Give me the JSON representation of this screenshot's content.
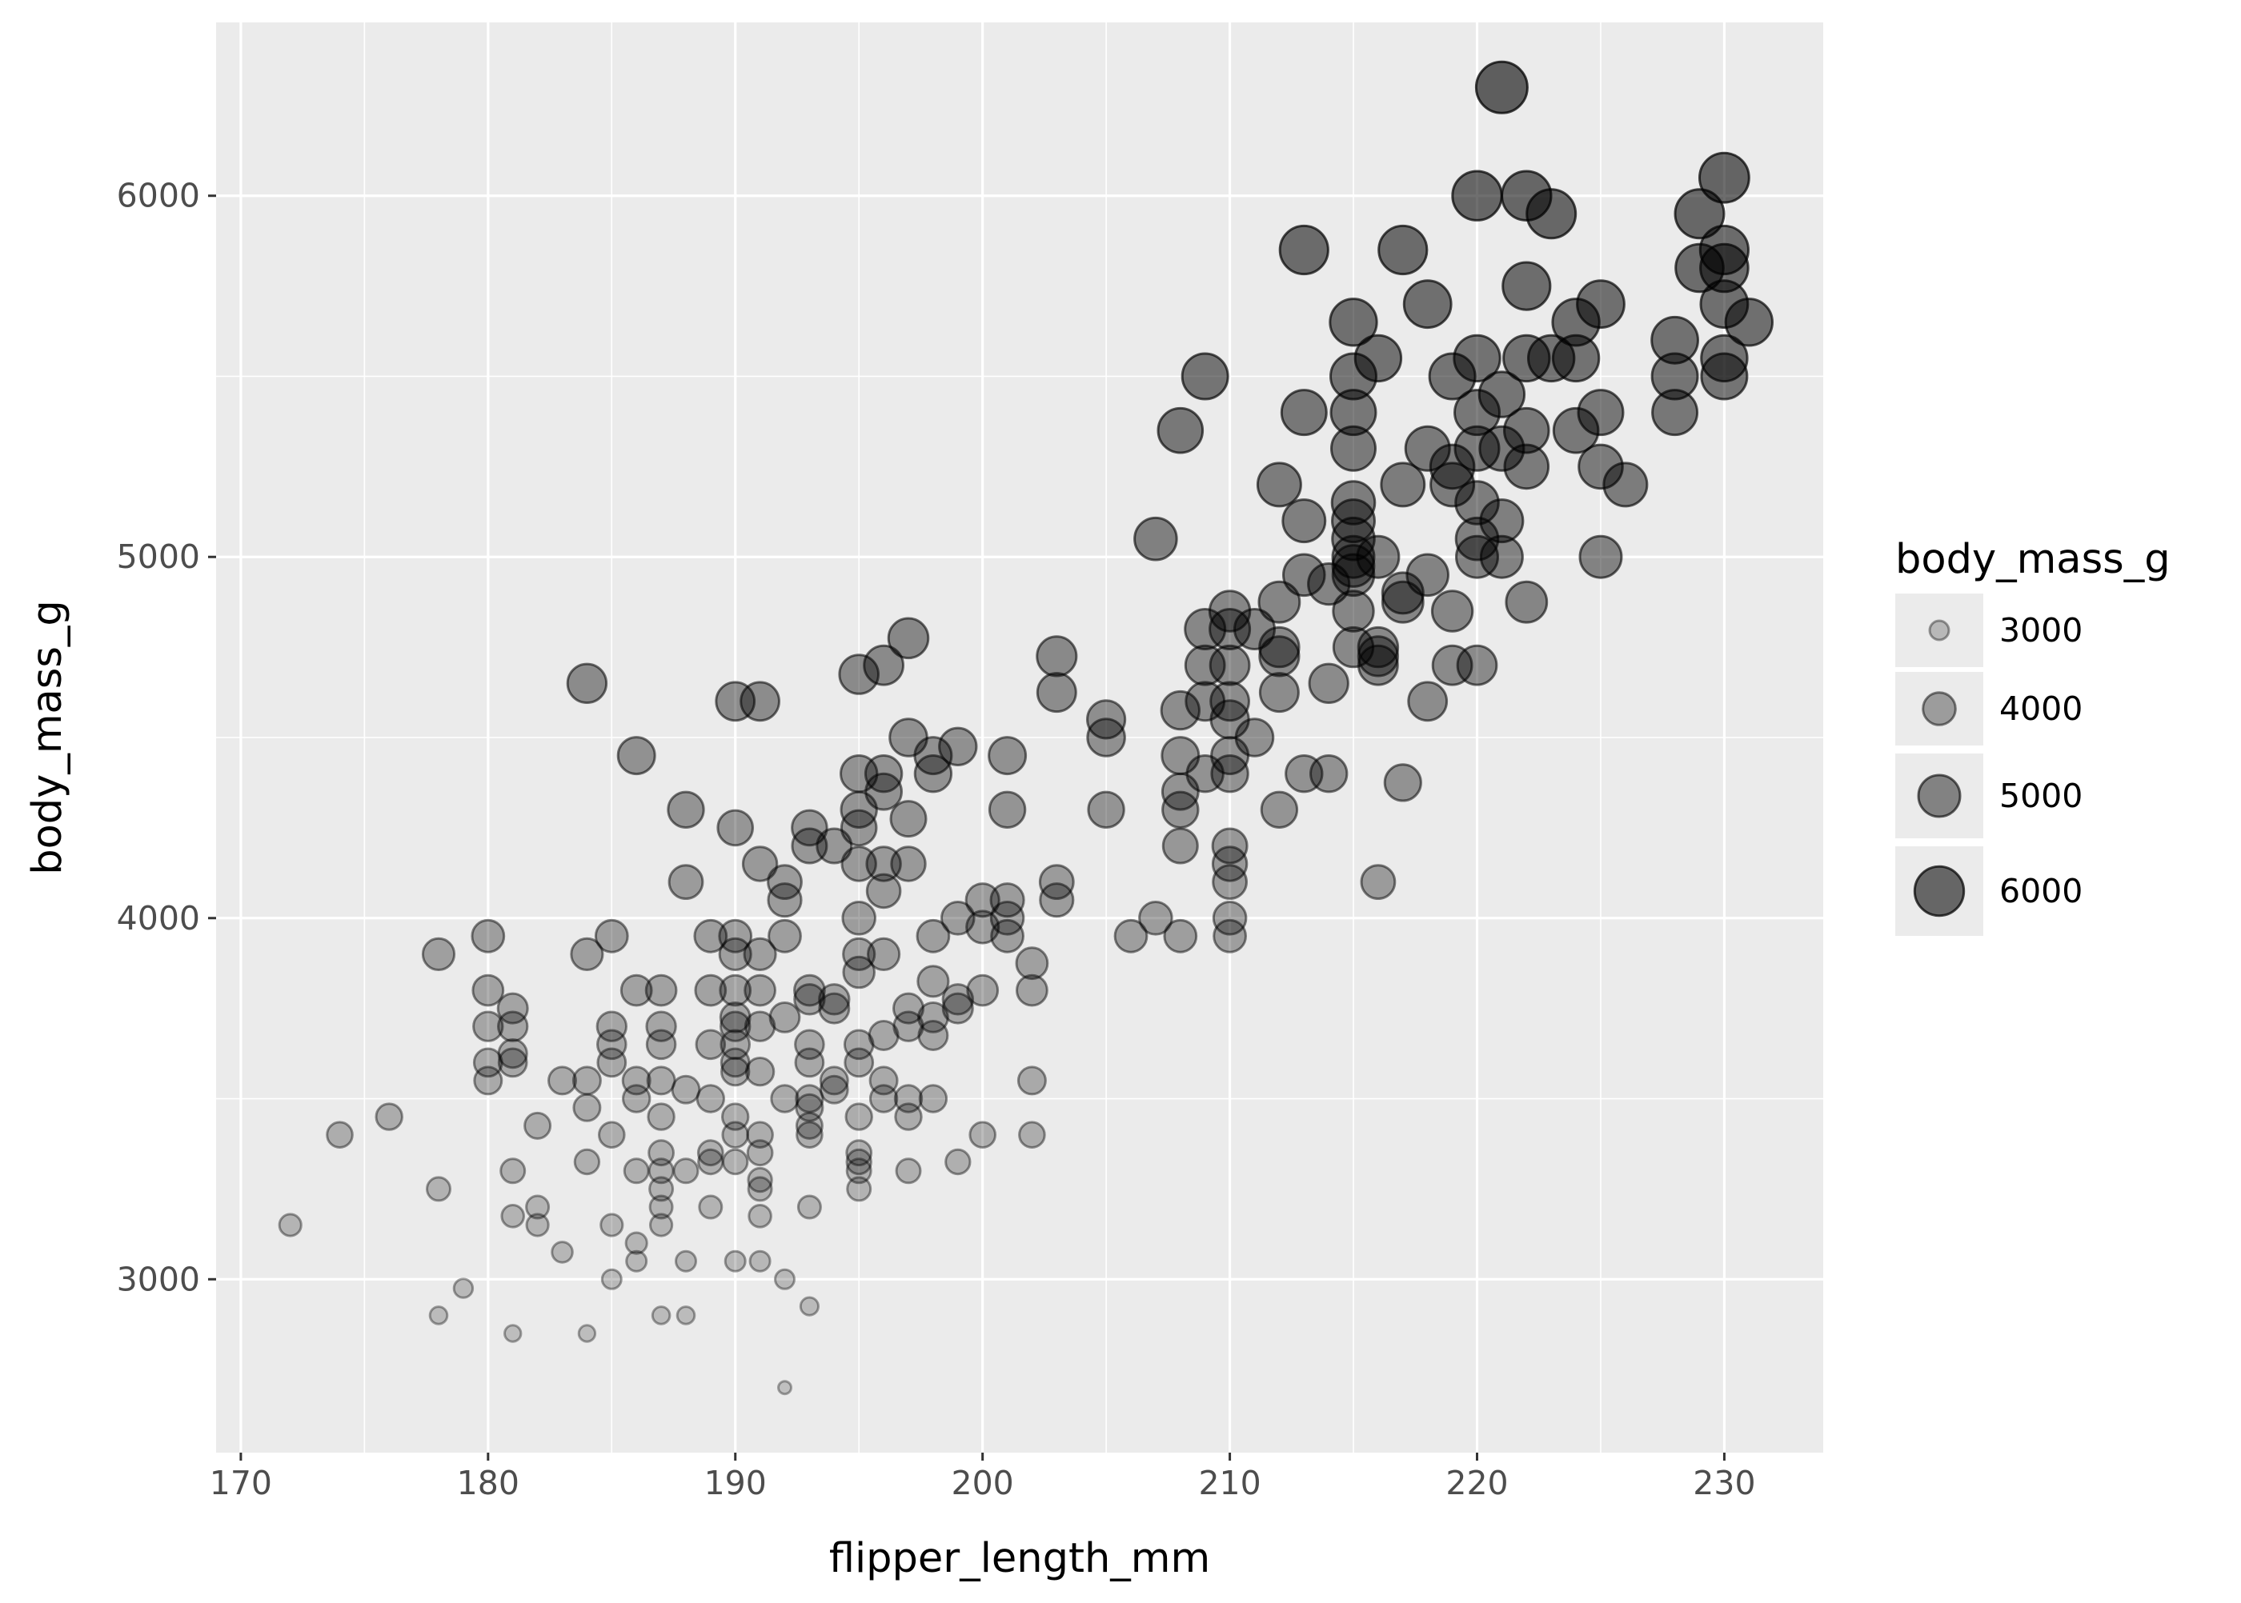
{
  "chart_data": {
    "type": "scatter",
    "title": "",
    "xlabel": "flipper_length_mm",
    "ylabel": "body_mass_g",
    "xlim": [
      169,
      234
    ],
    "ylim": [
      2520,
      6480
    ],
    "x_ticks": [
      170,
      180,
      190,
      200,
      210,
      220,
      230
    ],
    "y_ticks": [
      3000,
      4000,
      5000,
      6000
    ],
    "grid": true,
    "legend": {
      "title": "body_mass_g",
      "placement": "right",
      "values": [
        3000,
        4000,
        5000,
        6000
      ]
    },
    "size_encoding": "body_mass_g",
    "alpha_encoding": "body_mass_g",
    "points": [
      [
        172,
        3150
      ],
      [
        174,
        3400
      ],
      [
        176,
        3450
      ],
      [
        178,
        3900
      ],
      [
        178,
        3250
      ],
      [
        178,
        2900
      ],
      [
        179,
        2975
      ],
      [
        180,
        3950
      ],
      [
        180,
        3800
      ],
      [
        180,
        3700
      ],
      [
        180,
        3600
      ],
      [
        180,
        3550
      ],
      [
        181,
        3750
      ],
      [
        181,
        3700
      ],
      [
        181,
        3625
      ],
      [
        181,
        3600
      ],
      [
        181,
        3300
      ],
      [
        181,
        3175
      ],
      [
        181,
        2850
      ],
      [
        182,
        3425
      ],
      [
        182,
        3200
      ],
      [
        182,
        3150
      ],
      [
        183,
        3550
      ],
      [
        183,
        3075
      ],
      [
        184,
        4650
      ],
      [
        184,
        3900
      ],
      [
        184,
        3550
      ],
      [
        184,
        3475
      ],
      [
        184,
        3325
      ],
      [
        184,
        2850
      ],
      [
        185,
        3950
      ],
      [
        185,
        3700
      ],
      [
        185,
        3650
      ],
      [
        185,
        3600
      ],
      [
        185,
        3400
      ],
      [
        185,
        3150
      ],
      [
        185,
        3000
      ],
      [
        186,
        4450
      ],
      [
        186,
        3800
      ],
      [
        186,
        3550
      ],
      [
        186,
        3500
      ],
      [
        186,
        3300
      ],
      [
        186,
        3100
      ],
      [
        186,
        3050
      ],
      [
        187,
        3800
      ],
      [
        187,
        3700
      ],
      [
        187,
        3650
      ],
      [
        187,
        3550
      ],
      [
        187,
        3450
      ],
      [
        187,
        3350
      ],
      [
        187,
        3300
      ],
      [
        187,
        3250
      ],
      [
        187,
        3200
      ],
      [
        187,
        3150
      ],
      [
        187,
        2900
      ],
      [
        188,
        4300
      ],
      [
        188,
        4100
      ],
      [
        188,
        3525
      ],
      [
        188,
        3300
      ],
      [
        188,
        3050
      ],
      [
        188,
        2900
      ],
      [
        189,
        3950
      ],
      [
        189,
        3800
      ],
      [
        189,
        3650
      ],
      [
        189,
        3500
      ],
      [
        189,
        3350
      ],
      [
        189,
        3325
      ],
      [
        189,
        3200
      ],
      [
        190,
        4600
      ],
      [
        190,
        4250
      ],
      [
        190,
        3950
      ],
      [
        190,
        3900
      ],
      [
        190,
        3800
      ],
      [
        190,
        3725
      ],
      [
        190,
        3700
      ],
      [
        190,
        3650
      ],
      [
        190,
        3600
      ],
      [
        190,
        3575
      ],
      [
        190,
        3450
      ],
      [
        190,
        3400
      ],
      [
        190,
        3325
      ],
      [
        190,
        3050
      ],
      [
        191,
        4600
      ],
      [
        191,
        4150
      ],
      [
        191,
        3900
      ],
      [
        191,
        3800
      ],
      [
        191,
        3700
      ],
      [
        191,
        3575
      ],
      [
        191,
        3400
      ],
      [
        191,
        3350
      ],
      [
        191,
        3275
      ],
      [
        191,
        3250
      ],
      [
        191,
        3175
      ],
      [
        191,
        3050
      ],
      [
        192,
        4100
      ],
      [
        192,
        4050
      ],
      [
        192,
        3950
      ],
      [
        192,
        3725
      ],
      [
        192,
        3500
      ],
      [
        192,
        3000
      ],
      [
        192,
        2700
      ],
      [
        193,
        4250
      ],
      [
        193,
        4200
      ],
      [
        193,
        3800
      ],
      [
        193,
        3775
      ],
      [
        193,
        3650
      ],
      [
        193,
        3600
      ],
      [
        193,
        3500
      ],
      [
        193,
        3475
      ],
      [
        193,
        3425
      ],
      [
        193,
        3400
      ],
      [
        193,
        3200
      ],
      [
        193,
        2925
      ],
      [
        194,
        4200
      ],
      [
        194,
        3775
      ],
      [
        194,
        3750
      ],
      [
        194,
        3550
      ],
      [
        194,
        3525
      ],
      [
        195,
        4675
      ],
      [
        195,
        4400
      ],
      [
        195,
        4300
      ],
      [
        195,
        4250
      ],
      [
        195,
        4150
      ],
      [
        195,
        4000
      ],
      [
        195,
        3900
      ],
      [
        195,
        3850
      ],
      [
        195,
        3650
      ],
      [
        195,
        3600
      ],
      [
        195,
        3450
      ],
      [
        195,
        3350
      ],
      [
        195,
        3325
      ],
      [
        195,
        3300
      ],
      [
        195,
        3250
      ],
      [
        196,
        4700
      ],
      [
        196,
        4400
      ],
      [
        196,
        4350
      ],
      [
        196,
        4150
      ],
      [
        196,
        4075
      ],
      [
        196,
        3900
      ],
      [
        196,
        3675
      ],
      [
        196,
        3550
      ],
      [
        196,
        3500
      ],
      [
        197,
        4775
      ],
      [
        197,
        4500
      ],
      [
        197,
        4275
      ],
      [
        197,
        4150
      ],
      [
        197,
        3750
      ],
      [
        197,
        3700
      ],
      [
        197,
        3500
      ],
      [
        197,
        3450
      ],
      [
        197,
        3300
      ],
      [
        198,
        4450
      ],
      [
        198,
        4400
      ],
      [
        198,
        3950
      ],
      [
        198,
        3825
      ],
      [
        198,
        3725
      ],
      [
        198,
        3675
      ],
      [
        198,
        3500
      ],
      [
        199,
        4475
      ],
      [
        199,
        4000
      ],
      [
        199,
        3775
      ],
      [
        199,
        3750
      ],
      [
        199,
        3325
      ],
      [
        200,
        4050
      ],
      [
        200,
        3975
      ],
      [
        200,
        3800
      ],
      [
        200,
        3400
      ],
      [
        201,
        4450
      ],
      [
        201,
        4300
      ],
      [
        201,
        4050
      ],
      [
        201,
        4000
      ],
      [
        201,
        3950
      ],
      [
        202,
        3875
      ],
      [
        202,
        3800
      ],
      [
        202,
        3550
      ],
      [
        202,
        3400
      ],
      [
        203,
        4725
      ],
      [
        203,
        4625
      ],
      [
        203,
        4100
      ],
      [
        203,
        4050
      ],
      [
        205,
        4550
      ],
      [
        205,
        4500
      ],
      [
        205,
        4300
      ],
      [
        206,
        3950
      ],
      [
        207,
        5050
      ],
      [
        207,
        4000
      ],
      [
        208,
        5350
      ],
      [
        208,
        4575
      ],
      [
        208,
        4450
      ],
      [
        208,
        4350
      ],
      [
        208,
        4300
      ],
      [
        208,
        4200
      ],
      [
        208,
        3950
      ],
      [
        209,
        5500
      ],
      [
        209,
        4800
      ],
      [
        209,
        4700
      ],
      [
        209,
        4600
      ],
      [
        209,
        4400
      ],
      [
        210,
        4850
      ],
      [
        210,
        4800
      ],
      [
        210,
        4700
      ],
      [
        210,
        4600
      ],
      [
        210,
        4550
      ],
      [
        210,
        4450
      ],
      [
        210,
        4400
      ],
      [
        210,
        4200
      ],
      [
        210,
        4150
      ],
      [
        210,
        4100
      ],
      [
        210,
        4000
      ],
      [
        210,
        3950
      ],
      [
        211,
        4800
      ],
      [
        211,
        4500
      ],
      [
        212,
        5200
      ],
      [
        212,
        4875
      ],
      [
        212,
        4750
      ],
      [
        212,
        4725
      ],
      [
        212,
        4625
      ],
      [
        212,
        4300
      ],
      [
        213,
        5850
      ],
      [
        213,
        5400
      ],
      [
        213,
        5100
      ],
      [
        213,
        4950
      ],
      [
        213,
        4400
      ],
      [
        214,
        4925
      ],
      [
        214,
        4650
      ],
      [
        214,
        4400
      ],
      [
        215,
        5650
      ],
      [
        215,
        5500
      ],
      [
        215,
        5400
      ],
      [
        215,
        5300
      ],
      [
        215,
        5150
      ],
      [
        215,
        5100
      ],
      [
        215,
        5050
      ],
      [
        215,
        5000
      ],
      [
        215,
        4975
      ],
      [
        215,
        4950
      ],
      [
        215,
        4850
      ],
      [
        215,
        4750
      ],
      [
        216,
        5550
      ],
      [
        216,
        5000
      ],
      [
        216,
        4750
      ],
      [
        216,
        4725
      ],
      [
        216,
        4700
      ],
      [
        216,
        4100
      ],
      [
        217,
        5850
      ],
      [
        217,
        5200
      ],
      [
        217,
        4900
      ],
      [
        217,
        4875
      ],
      [
        217,
        4375
      ],
      [
        218,
        5700
      ],
      [
        218,
        5300
      ],
      [
        218,
        4950
      ],
      [
        218,
        4600
      ],
      [
        219,
        5500
      ],
      [
        219,
        5250
      ],
      [
        219,
        5200
      ],
      [
        219,
        4850
      ],
      [
        219,
        4700
      ],
      [
        220,
        6000
      ],
      [
        220,
        5550
      ],
      [
        220,
        5400
      ],
      [
        220,
        5300
      ],
      [
        220,
        5150
      ],
      [
        220,
        5050
      ],
      [
        220,
        5000
      ],
      [
        220,
        4700
      ],
      [
        221,
        6300
      ],
      [
        221,
        5450
      ],
      [
        221,
        5300
      ],
      [
        221,
        5100
      ],
      [
        221,
        5000
      ],
      [
        222,
        6000
      ],
      [
        222,
        5750
      ],
      [
        222,
        5550
      ],
      [
        222,
        5350
      ],
      [
        222,
        5250
      ],
      [
        222,
        4875
      ],
      [
        223,
        5950
      ],
      [
        223,
        5550
      ],
      [
        224,
        5650
      ],
      [
        224,
        5550
      ],
      [
        224,
        5350
      ],
      [
        225,
        5700
      ],
      [
        225,
        5400
      ],
      [
        225,
        5250
      ],
      [
        225,
        5000
      ],
      [
        226,
        5200
      ],
      [
        228,
        5600
      ],
      [
        228,
        5500
      ],
      [
        228,
        5400
      ],
      [
        229,
        5950
      ],
      [
        229,
        5800
      ],
      [
        230,
        6050
      ],
      [
        230,
        5850
      ],
      [
        230,
        5800
      ],
      [
        230,
        5700
      ],
      [
        230,
        5550
      ],
      [
        230,
        5500
      ],
      [
        231,
        5650
      ]
    ]
  }
}
